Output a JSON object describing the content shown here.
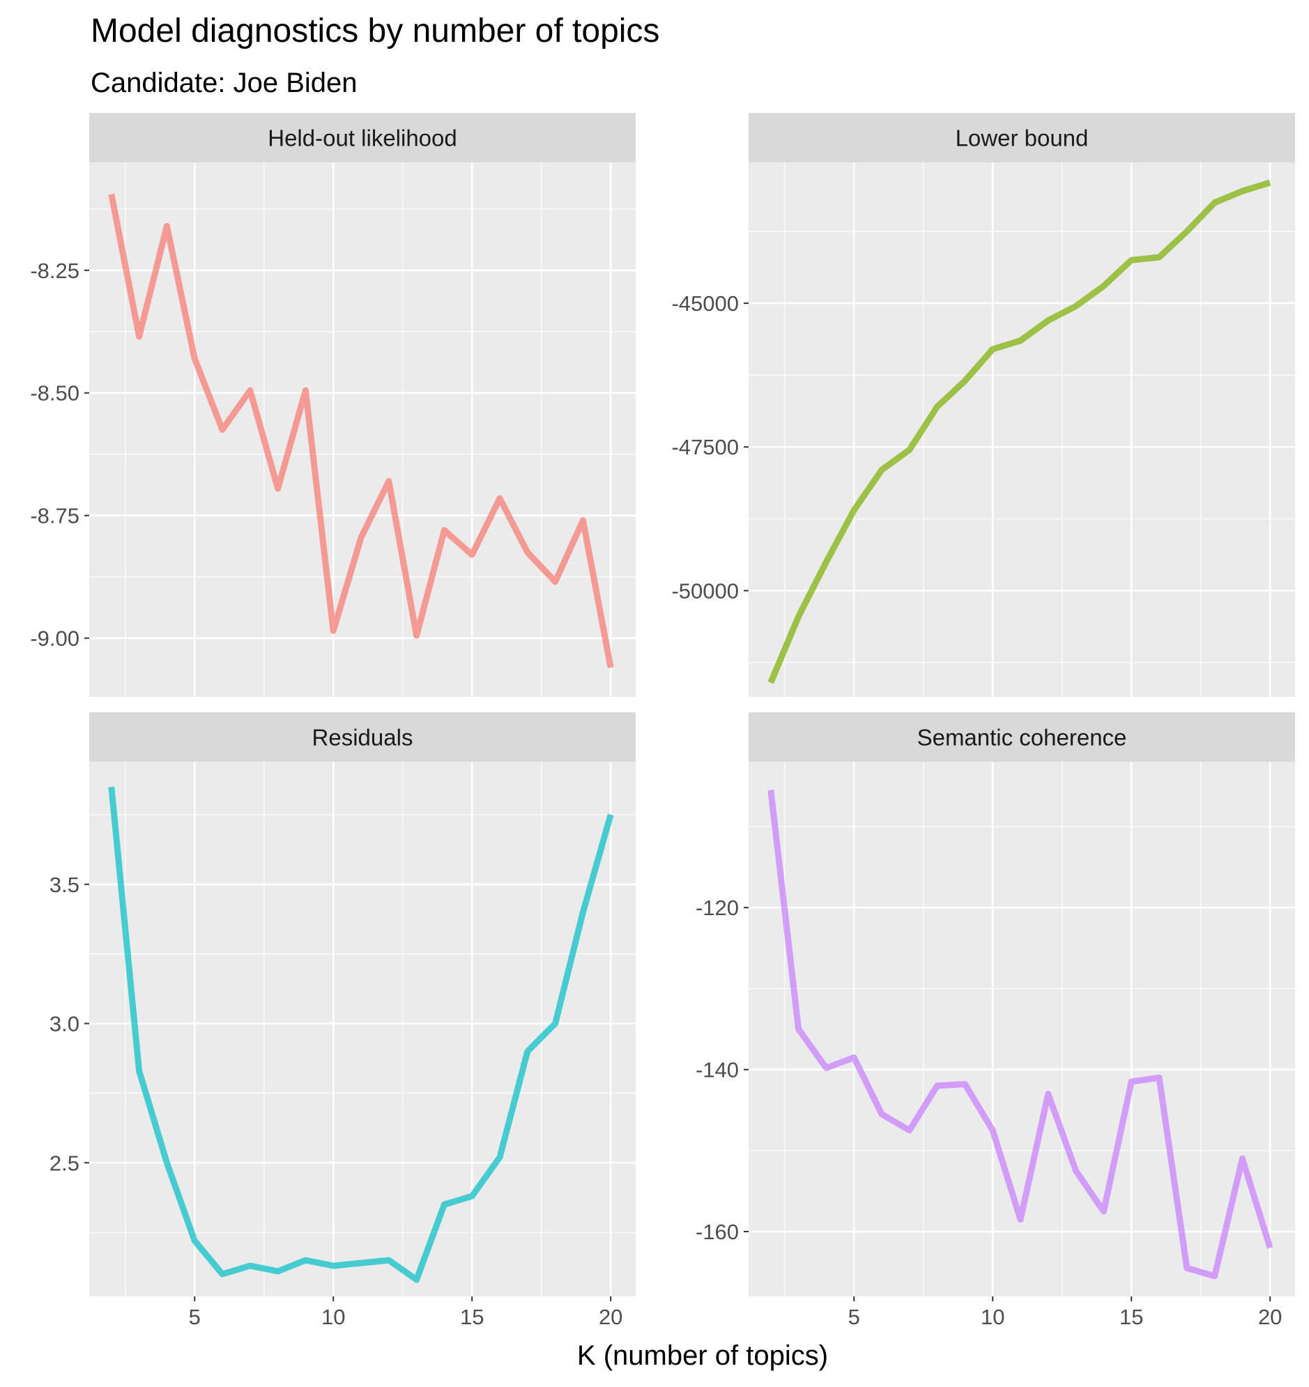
{
  "chart_data": {
    "type": "line",
    "title": "Model diagnostics by number of topics",
    "subtitle": "Candidate: Joe Biden",
    "xlabel": "K (number of topics)",
    "x_ticks": [
      5,
      10,
      15,
      20
    ],
    "xlim": [
      1.2,
      20.9
    ],
    "grid": true,
    "facet_strip_color": "#d9d9d9",
    "panel_background": "#ebebeb",
    "panels": [
      {
        "name": "Held-out likelihood",
        "color": "#f8766d",
        "x": [
          2,
          3,
          4,
          5,
          6,
          7,
          8,
          9,
          10,
          11,
          12,
          13,
          14,
          15,
          16,
          17,
          18,
          19,
          20
        ],
        "values": [
          -8.095,
          -8.385,
          -8.16,
          -8.43,
          -8.575,
          -8.495,
          -8.695,
          -8.495,
          -8.985,
          -8.795,
          -8.68,
          -8.995,
          -8.78,
          -8.83,
          -8.715,
          -8.825,
          -8.885,
          -8.76,
          -9.06
        ],
        "y_ticks": [
          -8.25,
          -8.5,
          -8.75,
          -9.0
        ],
        "y_tick_labels": [
          "-8.25",
          "-8.50",
          "-8.75",
          "-9.00"
        ],
        "ylim": [
          -9.12,
          -8.03
        ]
      },
      {
        "name": "Lower bound",
        "color": "#7cae00",
        "x": [
          2,
          3,
          4,
          5,
          6,
          7,
          8,
          9,
          10,
          11,
          12,
          13,
          14,
          15,
          16,
          17,
          18,
          19,
          20
        ],
        "values": [
          -51600,
          -50450,
          -49500,
          -48600,
          -47900,
          -47550,
          -46800,
          -46350,
          -45800,
          -45650,
          -45300,
          -45050,
          -44700,
          -44250,
          -44200,
          -43750,
          -43250,
          -43050,
          -42900
        ],
        "y_ticks": [
          -45000,
          -47500,
          -50000
        ],
        "y_tick_labels": [
          "-45000",
          "-47500",
          "-50000"
        ],
        "ylim": [
          -51850,
          -42550
        ]
      },
      {
        "name": "Residuals",
        "color": "#00bfc4",
        "x": [
          2,
          3,
          4,
          5,
          6,
          7,
          8,
          9,
          10,
          11,
          12,
          13,
          14,
          15,
          16,
          17,
          18,
          19,
          20
        ],
        "values": [
          3.85,
          2.83,
          2.5,
          2.22,
          2.1,
          2.13,
          2.11,
          2.15,
          2.13,
          2.14,
          2.15,
          2.08,
          2.35,
          2.38,
          2.52,
          2.9,
          3.0,
          3.4,
          3.75
        ],
        "y_ticks": [
          2.5,
          3.0,
          3.5
        ],
        "y_tick_labels": [
          "2.5",
          "3.0",
          "3.5"
        ],
        "ylim": [
          2.02,
          3.94
        ]
      },
      {
        "name": "Semantic coherence",
        "color": "#c77cff",
        "x": [
          2,
          3,
          4,
          5,
          6,
          7,
          8,
          9,
          10,
          11,
          12,
          13,
          14,
          15,
          16,
          17,
          18,
          19,
          20
        ],
        "values": [
          -105.5,
          -135,
          -139.8,
          -138.5,
          -145.5,
          -147.5,
          -142,
          -141.8,
          -147.5,
          -158.5,
          -143,
          -152.5,
          -157.5,
          -141.5,
          -141,
          -164.5,
          -165.5,
          -151,
          -162
        ],
        "y_ticks": [
          -120,
          -140,
          -160
        ],
        "y_tick_labels": [
          "-120",
          "-140",
          "-160"
        ],
        "ylim": [
          -168,
          -102
        ]
      }
    ]
  }
}
